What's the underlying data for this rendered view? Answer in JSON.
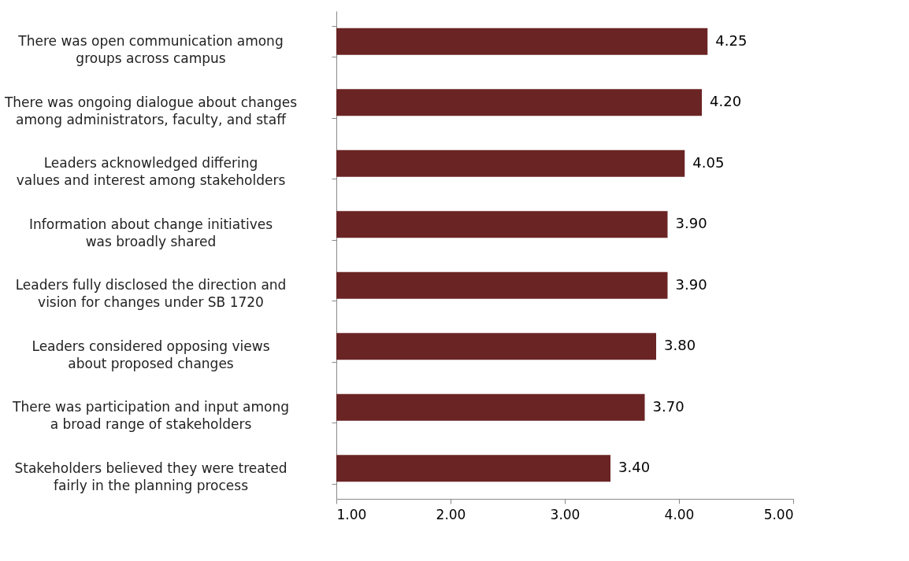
{
  "chart_data": {
    "type": "bar",
    "orientation": "horizontal",
    "categories": [
      "There was open communication among\ngroups across campus",
      "There was ongoing dialogue about changes\namong administrators, faculty, and staff",
      "Leaders acknowledged differing\nvalues and interest among stakeholders",
      "Information about change initiatives\nwas broadly shared",
      "Leaders fully disclosed the direction and\nvision for changes under SB 1720",
      "Leaders considered opposing views\nabout proposed changes",
      "There was participation and input among\na broad range of stakeholders",
      "Stakeholders believed they were treated\nfairly in the planning process"
    ],
    "values": [
      4.25,
      4.2,
      4.05,
      3.9,
      3.9,
      3.8,
      3.7,
      3.4
    ],
    "value_labels": [
      "4.25",
      "4.20",
      "4.05",
      "3.90",
      "3.90",
      "3.80",
      "3.70",
      "3.40"
    ],
    "color": "#6b2424",
    "xlim": [
      1,
      5
    ],
    "xticks": [
      {
        "value": 1,
        "label": "1.00"
      },
      {
        "value": 2,
        "label": "2.00"
      },
      {
        "value": 3,
        "label": "3.00"
      },
      {
        "value": 4,
        "label": "4.00"
      },
      {
        "value": 5,
        "label": "5.00"
      }
    ],
    "grid": false
  }
}
